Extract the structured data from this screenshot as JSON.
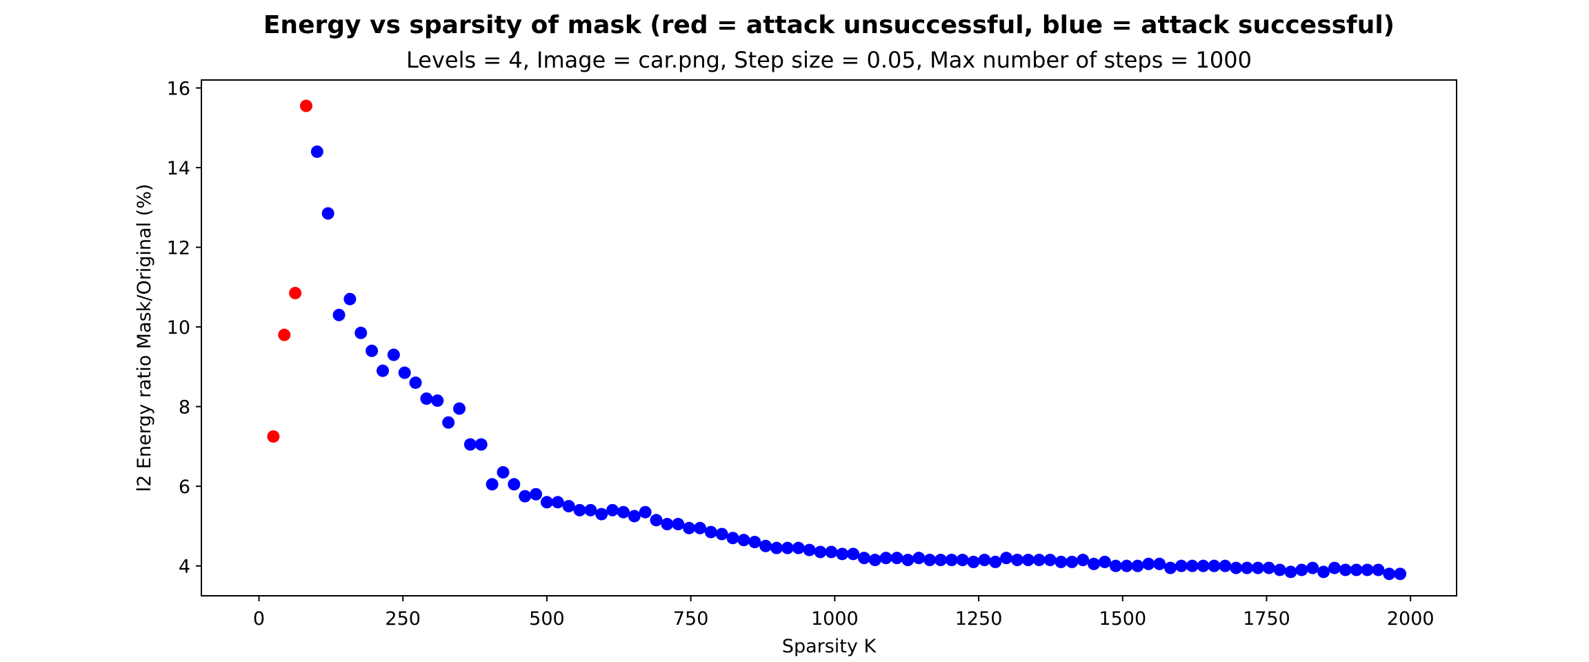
{
  "chart_data": {
    "type": "scatter",
    "title": "Energy vs sparsity of mask (red = attack unsuccessful, blue = attack successful)",
    "subtitle": "Levels = 4, Image = car.png, Step size = 0.05, Max number of steps = 1000",
    "xlabel": "Sparsity K",
    "ylabel": "l2 Energy ratio Mask/Original (%)",
    "xlim": [
      -100,
      2080
    ],
    "ylim": [
      3.25,
      16.2
    ],
    "xticks": [
      0,
      250,
      500,
      750,
      1000,
      1250,
      1500,
      1750,
      2000
    ],
    "yticks": [
      4,
      6,
      8,
      10,
      12,
      14,
      16
    ],
    "grid": false,
    "series": [
      {
        "color": "#ff0000",
        "x": [
          25,
          44,
          63,
          82
        ],
        "y": [
          7.25,
          9.8,
          10.85,
          15.55
        ]
      },
      {
        "color": "#0000ff",
        "x": [
          101,
          120,
          139,
          158,
          177,
          196,
          215,
          234,
          253,
          272,
          291,
          310,
          329,
          348,
          367,
          386,
          405,
          424,
          443,
          462,
          481,
          500,
          519,
          538,
          557,
          576,
          595,
          614,
          633,
          652,
          671,
          690,
          709,
          728,
          747,
          766,
          785,
          804,
          823,
          842,
          861,
          880,
          899,
          918,
          937,
          956,
          975,
          994,
          1013,
          1032,
          1051,
          1070,
          1089,
          1108,
          1127,
          1146,
          1165,
          1184,
          1203,
          1222,
          1241,
          1260,
          1279,
          1298,
          1317,
          1336,
          1355,
          1374,
          1393,
          1412,
          1431,
          1450,
          1469,
          1488,
          1507,
          1526,
          1545,
          1564,
          1583,
          1602,
          1621,
          1640,
          1659,
          1678,
          1697,
          1716,
          1735,
          1754,
          1773,
          1792,
          1811,
          1830,
          1849,
          1868,
          1887,
          1906,
          1925,
          1944,
          1963,
          1982
        ],
        "y": [
          14.4,
          12.85,
          10.3,
          10.7,
          9.85,
          9.4,
          8.9,
          9.3,
          8.85,
          8.6,
          8.2,
          8.15,
          7.6,
          7.95,
          7.05,
          7.05,
          6.05,
          6.35,
          6.05,
          5.75,
          5.8,
          5.6,
          5.6,
          5.5,
          5.4,
          5.4,
          5.3,
          5.4,
          5.35,
          5.25,
          5.35,
          5.15,
          5.05,
          5.05,
          4.95,
          4.95,
          4.85,
          4.8,
          4.7,
          4.65,
          4.6,
          4.5,
          4.45,
          4.45,
          4.45,
          4.4,
          4.35,
          4.35,
          4.3,
          4.3,
          4.2,
          4.15,
          4.2,
          4.2,
          4.15,
          4.2,
          4.15,
          4.15,
          4.15,
          4.15,
          4.1,
          4.15,
          4.1,
          4.2,
          4.15,
          4.15,
          4.15,
          4.15,
          4.1,
          4.1,
          4.15,
          4.05,
          4.1,
          4.0,
          4.0,
          4.0,
          4.05,
          4.05,
          3.95,
          4.0,
          4.0,
          4.0,
          4.0,
          4.0,
          3.95,
          3.95,
          3.95,
          3.95,
          3.9,
          3.85,
          3.9,
          3.95,
          3.85,
          3.95,
          3.9,
          3.9,
          3.9,
          3.9,
          3.8,
          3.8
        ]
      }
    ]
  }
}
